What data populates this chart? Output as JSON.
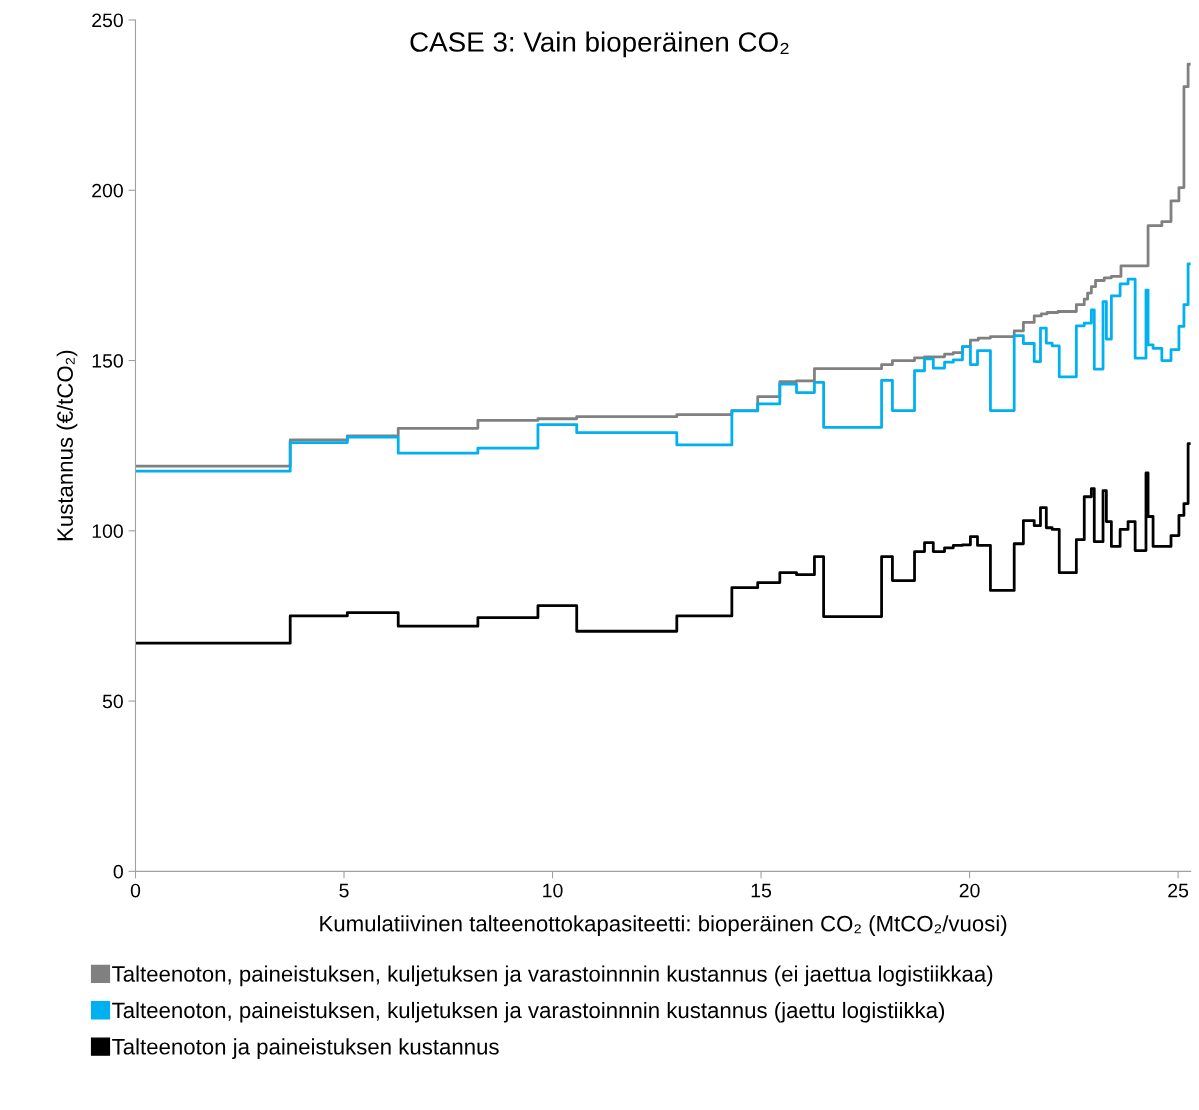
{
  "chart_data": {
    "type": "step",
    "title": "CASE 3: Vain bioperäinen CO₂",
    "xlabel": "Kumulatiivinen talteenottokapasiteetti: bioperäinen CO₂ (MtCO₂/vuosi)",
    "ylabel": "Kustannus (€/tCO₂)",
    "xlim": [
      0,
      25.3
    ],
    "xticks": [
      0,
      5,
      10,
      15,
      20,
      25
    ],
    "ylim": [
      0,
      250
    ],
    "yticks": [
      0,
      50,
      100,
      150,
      200,
      250
    ],
    "grid": false,
    "legend": "bottom",
    "marker": "none",
    "line_style": "solid",
    "series": [
      {
        "name": "Talteenoton, paineistuksen, kuljetuksen ja varastoinnnin kustannus (ei jaettua logistiikkaa)",
        "color": "#808080",
        "x": [
          0,
          3.71,
          5.08,
          6.3,
          8.21,
          9.65,
          10.58,
          12.98,
          14.3,
          14.92,
          15.45,
          15.85,
          16.28,
          17.89,
          18.15,
          18.68,
          18.92,
          19.4,
          19.61,
          19.83,
          20.02,
          20.21,
          20.5,
          21.07,
          21.29,
          21.55,
          21.72,
          21.86,
          22.12,
          22.56,
          22.75,
          22.83,
          22.92,
          23.02,
          23.23,
          23.4,
          23.63,
          24.28,
          24.61,
          24.83,
          25.02,
          25.14,
          25.24
        ],
        "values": [
          119,
          126.7,
          127.9,
          130.1,
          132.4,
          132.9,
          133.5,
          134.1,
          135.3,
          139.4,
          143.8,
          144,
          147.6,
          148.8,
          150,
          150.8,
          151.1,
          151.9,
          152.3,
          154.1,
          156,
          156.6,
          157,
          158.7,
          161.2,
          163.1,
          163.7,
          164.1,
          164.4,
          166.4,
          168,
          169.8,
          171.7,
          173.5,
          174.3,
          174.7,
          177.8,
          189.6,
          190.8,
          196.9,
          200.8,
          230.4,
          237
        ]
      },
      {
        "name": "Talteenoton, paineistuksen, kuljetuksen ja varastoinnnin kustannus (jaettu logistiikka)",
        "color": "#00b0f0",
        "x": [
          0,
          3.71,
          5.08,
          6.3,
          8.21,
          9.65,
          10.58,
          12.98,
          14.3,
          14.92,
          15.45,
          15.85,
          16.28,
          16.5,
          17.89,
          18.15,
          18.68,
          18.92,
          19.13,
          19.4,
          19.61,
          19.83,
          20.02,
          20.19,
          20.5,
          21.07,
          21.29,
          21.55,
          21.7,
          21.84,
          21.98,
          22.15,
          22.56,
          22.75,
          22.92,
          22.99,
          23.2,
          23.28,
          23.4,
          23.61,
          23.8,
          23.97,
          24.23,
          24.28,
          24.4,
          24.61,
          24.83,
          25.02,
          25.14,
          25.24
        ],
        "values": [
          117.5,
          125.9,
          127.5,
          122.8,
          124.3,
          131.2,
          128.8,
          125.2,
          135.2,
          137.3,
          143.1,
          140.6,
          143.6,
          130.4,
          144.2,
          135.3,
          147,
          150.5,
          147.8,
          149.5,
          150.2,
          154.1,
          148.8,
          152.9,
          135.3,
          157.3,
          155,
          149.7,
          159.5,
          155.1,
          154.3,
          145.2,
          160.2,
          161,
          164.9,
          147.5,
          167.3,
          156.3,
          169,
          172.5,
          173.9,
          150.7,
          170.7,
          154.6,
          153.6,
          150,
          153.2,
          160,
          166.4,
          178.4
        ]
      },
      {
        "name": "Talteenoton ja paineistuksen kustannus",
        "color": "#000000",
        "x": [
          0,
          3.71,
          5.08,
          6.3,
          8.21,
          9.65,
          10.58,
          12.98,
          14.3,
          14.92,
          15.45,
          15.85,
          16.28,
          16.5,
          17.89,
          18.15,
          18.68,
          18.92,
          19.13,
          19.4,
          19.61,
          19.83,
          20.02,
          20.19,
          20.5,
          21.07,
          21.29,
          21.55,
          21.7,
          21.84,
          21.98,
          22.15,
          22.56,
          22.75,
          22.92,
          22.99,
          23.2,
          23.28,
          23.4,
          23.61,
          23.8,
          23.97,
          24.23,
          24.28,
          24.4,
          24.83,
          25.02,
          25.14,
          25.24
        ],
        "values": [
          67,
          75,
          76,
          72,
          74.5,
          78,
          70.5,
          75,
          83.3,
          84.8,
          87.7,
          87.1,
          92.4,
          74.8,
          92.4,
          85.4,
          93.9,
          96.5,
          93.9,
          95,
          95.7,
          95.9,
          98.3,
          95.7,
          82.5,
          96.2,
          103,
          101.5,
          106.8,
          100.9,
          100.4,
          87.7,
          97.4,
          110,
          112.4,
          96.8,
          111.8,
          102.7,
          95.4,
          100.4,
          102.7,
          94.2,
          117,
          104.2,
          95.4,
          98.6,
          104.5,
          108,
          125.6
        ]
      }
    ]
  }
}
